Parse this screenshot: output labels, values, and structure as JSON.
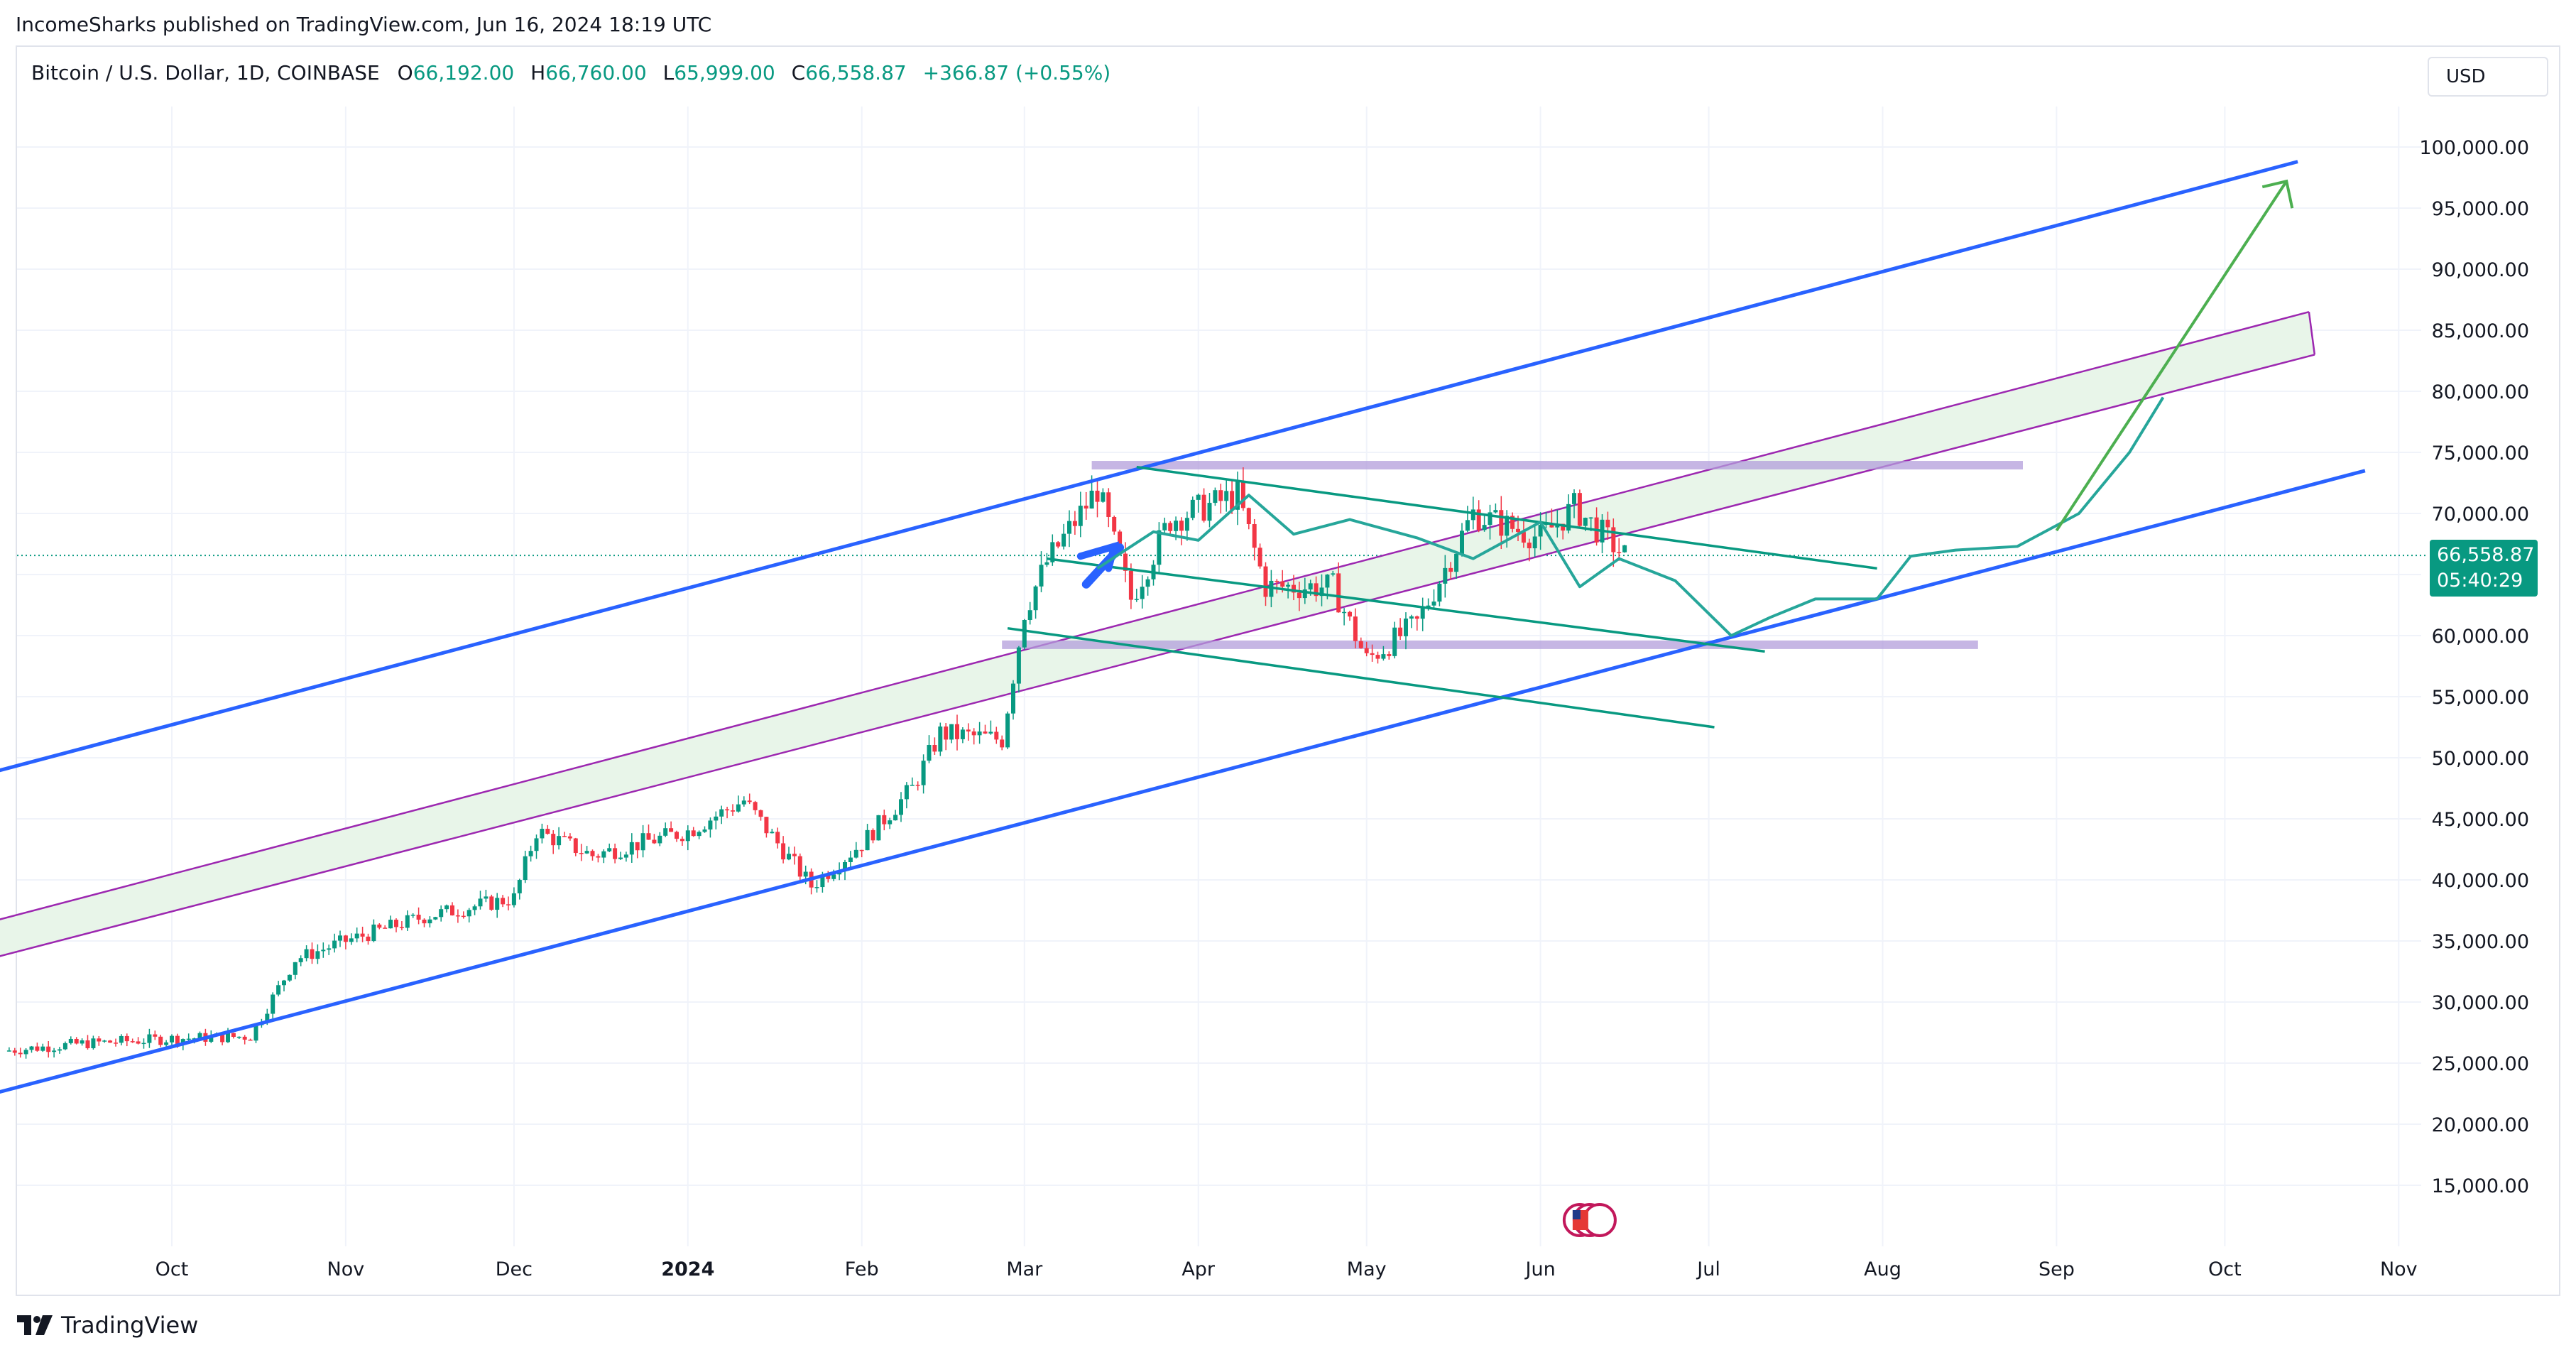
{
  "header": {
    "published": "IncomeSharks published on TradingView.com, Jun 16, 2024 18:19 UTC"
  },
  "legend": {
    "symbol": "Bitcoin / U.S. Dollar, 1D, COINBASE",
    "open_label": "O",
    "open": "66,192.00",
    "high_label": "H",
    "high": "66,760.00",
    "low_label": "L",
    "low": "65,999.00",
    "close_label": "C",
    "close": "66,558.87",
    "change": "+366.87 (+0.55%)"
  },
  "currency_button": "USD",
  "price_tag": {
    "price": "66,558.87",
    "countdown": "05:40:29"
  },
  "brand": "TradingView",
  "colors": {
    "up": "#089981",
    "down": "#f23645",
    "channel": "#2962ff",
    "band_stroke": "#9c27b0",
    "band_fill": "#e8f5e9",
    "wedge": "#089981",
    "zone": "#b39ddb",
    "forecast": "#26a69a",
    "arrow": "#4caf50"
  },
  "chart_data": {
    "type": "candlestick",
    "title": "Bitcoin / U.S. Dollar, 1D, COINBASE",
    "x_ticks": [
      "Oct",
      "Nov",
      "Dec",
      "2024",
      "Feb",
      "Mar",
      "Apr",
      "May",
      "Jun",
      "Jul",
      "Aug",
      "Sep",
      "Oct",
      "Nov"
    ],
    "y_ticks": [
      "100,000.00",
      "95,000.00",
      "90,000.00",
      "85,000.00",
      "80,000.00",
      "75,000.00",
      "70,000.00",
      "65,000.00",
      "60,000.00",
      "55,000.00",
      "50,000.00",
      "45,000.00",
      "40,000.00",
      "35,000.00",
      "30,000.00",
      "25,000.00",
      "20,000.00",
      "15,000.00"
    ],
    "ylim": [
      12000,
      103000
    ],
    "last_price": 66558.87,
    "candles_close_path": [
      [
        "2023-09-01",
        26000
      ],
      [
        "2023-09-15",
        26600
      ],
      [
        "2023-10-01",
        27000
      ],
      [
        "2023-10-15",
        27200
      ],
      [
        "2023-10-23",
        33500
      ],
      [
        "2023-11-01",
        35000
      ],
      [
        "2023-11-15",
        37000
      ],
      [
        "2023-12-01",
        38500
      ],
      [
        "2023-12-05",
        44000
      ],
      [
        "2023-12-15",
        42000
      ],
      [
        "2024-01-01",
        44000
      ],
      [
        "2024-01-11",
        46500
      ],
      [
        "2024-01-23",
        39500
      ],
      [
        "2024-02-01",
        43000
      ],
      [
        "2024-02-10",
        47500
      ],
      [
        "2024-02-15",
        52000
      ],
      [
        "2024-02-26",
        51500
      ],
      [
        "2024-03-01",
        62000
      ],
      [
        "2024-03-05",
        66000
      ],
      [
        "2024-03-14",
        72000
      ],
      [
        "2024-03-20",
        63000
      ],
      [
        "2024-03-27",
        69500
      ],
      [
        "2024-04-08",
        71500
      ],
      [
        "2024-04-13",
        64000
      ],
      [
        "2024-04-25",
        64000
      ],
      [
        "2024-05-01",
        58000
      ],
      [
        "2024-05-10",
        61000
      ],
      [
        "2024-05-20",
        70000
      ],
      [
        "2024-06-01",
        68000
      ],
      [
        "2024-06-07",
        70500
      ],
      [
        "2024-06-16",
        66558
      ]
    ],
    "drawings": {
      "ascending_channel": "blue parallel lines",
      "rising_band": "green filled band with purple borders",
      "descending_wedge": "green trendlines",
      "horizontal_zones": [
        "~73,800",
        "~59,000"
      ],
      "projection": "curved path to ~95,000 with arrow"
    }
  }
}
